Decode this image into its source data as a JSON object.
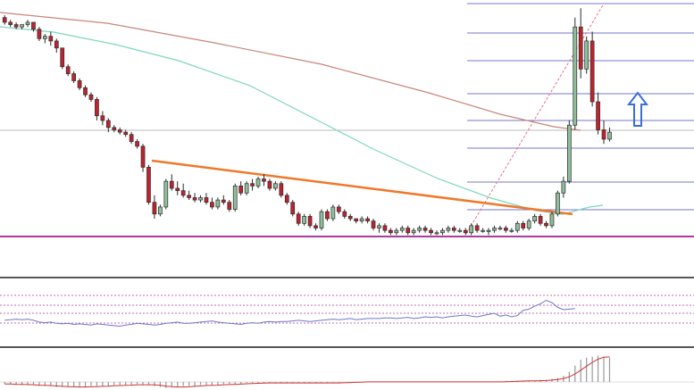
{
  "colors": {
    "background": "#ffffff",
    "bull_candle_fill": "#8fbf9a",
    "bear_candle_fill": "#c0232f",
    "candle_outline": "#2b2b2b",
    "ma_fast": "#7fd6bf",
    "ma_slow": "#c9857a",
    "trendline": "#f0782a",
    "fibonacci_levels": "#7777cc",
    "projection_line": "#e8708f",
    "support_line": "#b03a9c",
    "arrow": "#3a6fd8",
    "panel_separator": "#555555",
    "rsi_line": "#6f77c7",
    "rsi_bands": "#c66ab6",
    "histogram": "#999999",
    "signal_line": "#cc3333"
  },
  "icons": {
    "breakout_arrow": "up-arrow-icon"
  },
  "chart_data": [
    {
      "type": "candlestick",
      "title": "",
      "xlabel": "",
      "ylabel": "",
      "grid": false,
      "ylim": [
        0,
        100
      ],
      "candles": [
        [
          94,
          95,
          91,
          92
        ],
        [
          92,
          93,
          90,
          91
        ],
        [
          91,
          92,
          89,
          90
        ],
        [
          90,
          91,
          89,
          91
        ],
        [
          91,
          93,
          90,
          92
        ],
        [
          92,
          92,
          88,
          89
        ],
        [
          89,
          90,
          84,
          85
        ],
        [
          85,
          87,
          83,
          86
        ],
        [
          86,
          88,
          82,
          84
        ],
        [
          84,
          85,
          79,
          81
        ],
        [
          81,
          81,
          72,
          73
        ],
        [
          73,
          74,
          69,
          70
        ],
        [
          70,
          71,
          66,
          67
        ],
        [
          67,
          68,
          63,
          64
        ],
        [
          64,
          65,
          60,
          61
        ],
        [
          61,
          62,
          58,
          59
        ],
        [
          59,
          60,
          50,
          52
        ],
        [
          52,
          54,
          48,
          50
        ],
        [
          50,
          51,
          45,
          47
        ],
        [
          47,
          48,
          45,
          46
        ],
        [
          46,
          47,
          44,
          45
        ],
        [
          45,
          46,
          43,
          44
        ],
        [
          44,
          45,
          40,
          41
        ],
        [
          41,
          42,
          38,
          39
        ],
        [
          39,
          40,
          28,
          30
        ],
        [
          30,
          31,
          14,
          15
        ],
        [
          15,
          18,
          8,
          10
        ],
        [
          10,
          14,
          9,
          13
        ],
        [
          13,
          25,
          12,
          24
        ],
        [
          24,
          27,
          20,
          21
        ],
        [
          21,
          24,
          18,
          20
        ],
        [
          20,
          23,
          17,
          18
        ],
        [
          18,
          20,
          16,
          17
        ],
        [
          17,
          19,
          15,
          16
        ],
        [
          16,
          18,
          15,
          17
        ],
        [
          17,
          19,
          14,
          15
        ],
        [
          15,
          17,
          12,
          13
        ],
        [
          13,
          17,
          12,
          16
        ],
        [
          16,
          18,
          14,
          15
        ],
        [
          15,
          16,
          11,
          12
        ],
        [
          12,
          23,
          11,
          22
        ],
        [
          22,
          24,
          18,
          19
        ],
        [
          19,
          24,
          18,
          23
        ],
        [
          23,
          25,
          20,
          22
        ],
        [
          22,
          26,
          21,
          25
        ],
        [
          25,
          27,
          22,
          24
        ],
        [
          24,
          25,
          20,
          21
        ],
        [
          21,
          24,
          20,
          23
        ],
        [
          23,
          24,
          17,
          18
        ],
        [
          18,
          19,
          14,
          15
        ],
        [
          15,
          16,
          9,
          10
        ],
        [
          10,
          11,
          5,
          6
        ],
        [
          6,
          10,
          5,
          9
        ],
        [
          9,
          10,
          4,
          5
        ],
        [
          5,
          6,
          3,
          4
        ],
        [
          4,
          12,
          3,
          11
        ],
        [
          11,
          12,
          7,
          8
        ],
        [
          8,
          14,
          7,
          13
        ],
        [
          13,
          14,
          10,
          11
        ],
        [
          11,
          12,
          8,
          9
        ],
        [
          9,
          10,
          7,
          8
        ],
        [
          8,
          8,
          6,
          7
        ],
        [
          7,
          9,
          6,
          8
        ],
        [
          8,
          9,
          6,
          7
        ],
        [
          7,
          8,
          3,
          4
        ],
        [
          4,
          6,
          2,
          5
        ],
        [
          5,
          6,
          2,
          3
        ],
        [
          3,
          4,
          1,
          2
        ],
        [
          2,
          4,
          1,
          3
        ],
        [
          3,
          5,
          2,
          4
        ],
        [
          4,
          5,
          1,
          2
        ],
        [
          2,
          4,
          1,
          3
        ],
        [
          3,
          5,
          2,
          4
        ],
        [
          4,
          5,
          2,
          3
        ],
        [
          3,
          4,
          1,
          2
        ],
        [
          2,
          3,
          1,
          2
        ],
        [
          2,
          4,
          1,
          3
        ],
        [
          3,
          5,
          2,
          4
        ],
        [
          4,
          5,
          2,
          3
        ],
        [
          3,
          4,
          2,
          3
        ],
        [
          3,
          4,
          1,
          2
        ],
        [
          2,
          6,
          1,
          5
        ],
        [
          5,
          6,
          2,
          3
        ],
        [
          3,
          4,
          2,
          3
        ],
        [
          3,
          4,
          1,
          3
        ],
        [
          3,
          5,
          2,
          4
        ],
        [
          4,
          5,
          3,
          4
        ],
        [
          4,
          5,
          2,
          3
        ],
        [
          3,
          4,
          2,
          3
        ],
        [
          3,
          7,
          2,
          6
        ],
        [
          6,
          7,
          3,
          4
        ],
        [
          4,
          8,
          3,
          7
        ],
        [
          7,
          10,
          6,
          9
        ],
        [
          9,
          10,
          5,
          6
        ],
        [
          6,
          7,
          4,
          5
        ],
        [
          5,
          11,
          4,
          10
        ],
        [
          10,
          20,
          9,
          19
        ],
        [
          19,
          26,
          17,
          24
        ],
        [
          24,
          50,
          23,
          48
        ],
        [
          48,
          94,
          46,
          90
        ],
        [
          90,
          98,
          68,
          72
        ],
        [
          72,
          86,
          70,
          84
        ],
        [
          84,
          88,
          56,
          58
        ],
        [
          58,
          62,
          44,
          46
        ],
        [
          46,
          50,
          40,
          42
        ],
        [
          42,
          47,
          41,
          45
        ]
      ]
    },
    {
      "type": "line",
      "title": "",
      "ylim": [
        0,
        100
      ],
      "series": [
        {
          "values": [
            38,
            39,
            40,
            39,
            40,
            38,
            35,
            34,
            35,
            33,
            32,
            33,
            31,
            32,
            31,
            30,
            32,
            31,
            30,
            29,
            28,
            30,
            31,
            33,
            32,
            31,
            30,
            31,
            33,
            34,
            35,
            33,
            33,
            34,
            35,
            36,
            37,
            35,
            34,
            33,
            32,
            31,
            33,
            34,
            33,
            35,
            36,
            35,
            36,
            36,
            37,
            38,
            37,
            36,
            37,
            38,
            39,
            40,
            39,
            40,
            41,
            39,
            40,
            41,
            41,
            41,
            42,
            42,
            41,
            42,
            43,
            41,
            42,
            44,
            43,
            44,
            42,
            44,
            45,
            46,
            47,
            45,
            44,
            46,
            48,
            50,
            45,
            47,
            44,
            46,
            55,
            57,
            62,
            66,
            72,
            68,
            60,
            56,
            57,
            58
          ]
        }
      ]
    },
    {
      "type": "bar",
      "title": "",
      "ylim": [
        -8,
        30
      ],
      "values": [
        -2,
        -2,
        -3,
        -3,
        -3,
        -3,
        -4,
        -4,
        -4,
        -5,
        -5,
        -5,
        -5,
        -5,
        -5,
        -4,
        -4,
        -4,
        -4,
        -3,
        -3,
        -3,
        -3,
        -2,
        -3,
        -3,
        -4,
        -5,
        -6,
        -5,
        -5,
        -4,
        -4,
        -4,
        -3,
        -3,
        -3,
        -3,
        -2,
        -2,
        -2,
        -2,
        -1,
        -1,
        -1,
        -1,
        -1,
        -1,
        -1,
        -1,
        -1,
        -1,
        -1,
        -1,
        -1,
        -1,
        -1,
        -1,
        -1,
        0,
        0,
        0,
        0,
        0,
        0,
        0,
        0,
        0,
        0,
        0,
        0,
        0,
        0,
        0,
        0,
        0,
        0,
        0,
        0,
        0,
        0,
        0,
        0,
        0,
        0,
        0,
        0,
        1,
        1,
        1,
        1,
        1,
        1,
        2,
        2,
        3,
        4,
        6,
        10,
        16,
        22,
        24,
        25,
        26,
        25,
        24
      ]
    }
  ]
}
